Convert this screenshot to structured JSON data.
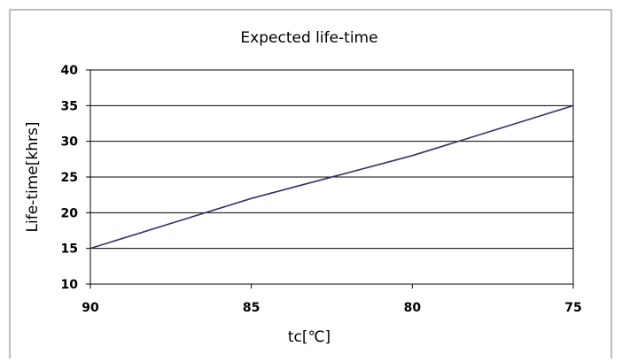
{
  "chart_data": {
    "type": "line",
    "title": "Expected life-time",
    "xlabel": "tc[℃]",
    "ylabel": "Life-time[khrs]",
    "x": [
      90,
      85,
      80,
      75
    ],
    "xticks": [
      "90",
      "85",
      "80",
      "75"
    ],
    "xlim": [
      90,
      75
    ],
    "ylim": [
      10,
      40
    ],
    "yticks": [
      "10",
      "15",
      "20",
      "25",
      "30",
      "35",
      "40"
    ],
    "grid": true,
    "series": [
      {
        "values": [
          15,
          22,
          28,
          35
        ],
        "color": "#333366"
      }
    ]
  }
}
